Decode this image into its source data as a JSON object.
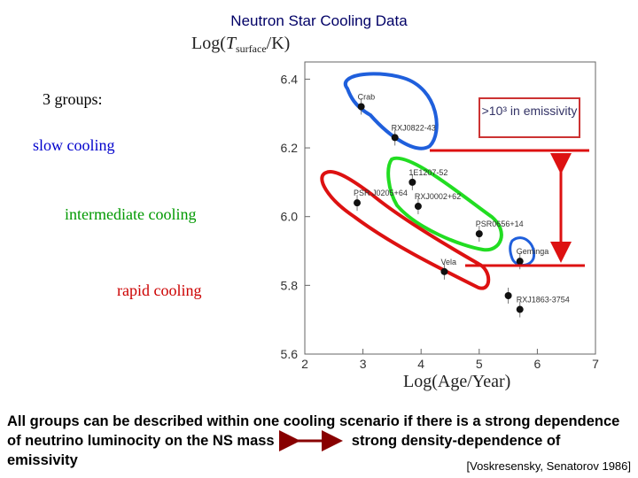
{
  "title": "Neutron Star Cooling Data",
  "groups_heading": "3 groups:",
  "group_labels": {
    "slow": "slow cooling",
    "intermediate": "intermediate cooling",
    "rapid": "rapid cooling"
  },
  "emissivity_note": ">10³ in emissivity",
  "footer": {
    "line1": "All groups can be described within one cooling scenario if there is a strong dependence",
    "line2a": "of neutrino luminocity on the NS mass",
    "line2b": "strong density-dependence of",
    "line3": "emissivity",
    "reference": "[Voskresensky, Senatorov 1986]"
  },
  "colors": {
    "slow": "#1f5fdc",
    "intermediate": "#22dd22",
    "rapid": "#dd1111",
    "arrow": "#880000"
  },
  "chart_data": {
    "type": "scatter",
    "title": "",
    "xlabel": "Log(Age/Year)",
    "ylabel": "Log(T_surface/K)",
    "xlim": [
      2,
      7
    ],
    "ylim": [
      5.6,
      6.45
    ],
    "xticks": [
      2,
      3,
      4,
      5,
      6,
      7
    ],
    "yticks": [
      5.6,
      5.8,
      6.0,
      6.2,
      6.4
    ],
    "points": [
      {
        "label": "Crab",
        "x": 2.97,
        "y": 6.32
      },
      {
        "label": "RXJ0822-43",
        "x": 3.55,
        "y": 6.23
      },
      {
        "label": "1E1207-52",
        "x": 3.85,
        "y": 6.1
      },
      {
        "label": "RXJ0002+62",
        "x": 3.95,
        "y": 6.03
      },
      {
        "label": "PSR J0205+64",
        "x": 2.9,
        "y": 6.04
      },
      {
        "label": "PSR0656+14",
        "x": 5.0,
        "y": 5.95
      },
      {
        "label": "Vela",
        "x": 4.4,
        "y": 5.84
      },
      {
        "label": "Geminga",
        "x": 5.7,
        "y": 5.87
      },
      {
        "label": "",
        "x": 5.5,
        "y": 5.77
      },
      {
        "label": "RXJ1863-3754",
        "x": 5.7,
        "y": 5.73
      }
    ]
  }
}
